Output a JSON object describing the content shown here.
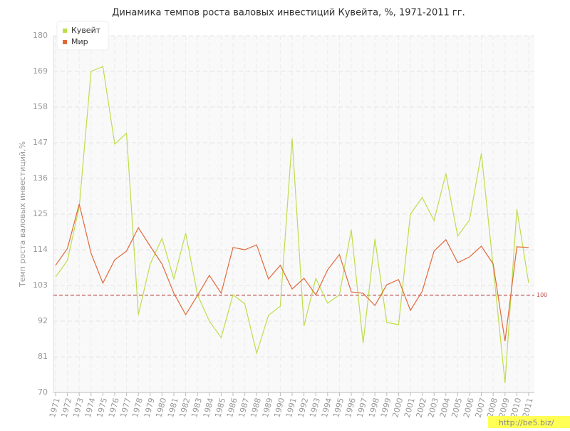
{
  "chart_data": {
    "type": "line",
    "title": "Динамика темпов роста валовых инвестиций Кувейта, %, 1971-2011 гг.",
    "y_label": "Темп роста валовых инвестиций,%",
    "categories": [
      "1971",
      "1972",
      "1973",
      "1974",
      "1975",
      "1976",
      "1977",
      "1978",
      "1979",
      "1980",
      "1981",
      "1982",
      "1983",
      "1984",
      "1985",
      "1986",
      "1987",
      "1988",
      "1989",
      "1990",
      "1991",
      "1992",
      "1993",
      "1994",
      "1995",
      "1996",
      "1997",
      "1998",
      "1999",
      "2000",
      "2001",
      "2002",
      "2003",
      "2004",
      "2005",
      "2006",
      "2007",
      "2008",
      "2009",
      "2010",
      "2011"
    ],
    "series": [
      {
        "name": "Кувейт",
        "color": "#bedd4c",
        "values": [
          105.6,
          110.7,
          127.2,
          169,
          170.5,
          146.6,
          149.9,
          94,
          109.6,
          117.5,
          105,
          119.1,
          100.1,
          92,
          86.9,
          100.1,
          97.3,
          82.1,
          93.8,
          96.6,
          148.3,
          90.5,
          105.2,
          97.5,
          100.1,
          120.2,
          85.2,
          117.3,
          91.6,
          90.9,
          125,
          130.1,
          123,
          137.5,
          118.2,
          123.2,
          143.7,
          108.7,
          72.9,
          126.5,
          103.7
        ]
      },
      {
        "name": "Мир",
        "color": "#e06a3c",
        "values": [
          109.2,
          114.4,
          128.1,
          112.9,
          103.7,
          110.9,
          113.6,
          120.8,
          115.1,
          109.6,
          100.6,
          94,
          99.9,
          106.1,
          100.6,
          114.7,
          114,
          115.5,
          105,
          109.2,
          101.9,
          105.2,
          100.1,
          107.8,
          112.5,
          101,
          100.6,
          96.8,
          103.2,
          104.8,
          95.3,
          101.2,
          113.6,
          117.1,
          110,
          111.8,
          115.1,
          109.6,
          85.8,
          114.9,
          114.7
        ]
      }
    ],
    "ylim": [
      70,
      180
    ],
    "yticks": [
      70,
      81,
      92,
      103,
      114,
      125,
      136,
      147,
      158,
      169,
      180
    ],
    "reference_line": 100,
    "reference_color": "#c0504d",
    "grid": true,
    "legend": "top-left",
    "watermark": "http://be5.biz/"
  }
}
